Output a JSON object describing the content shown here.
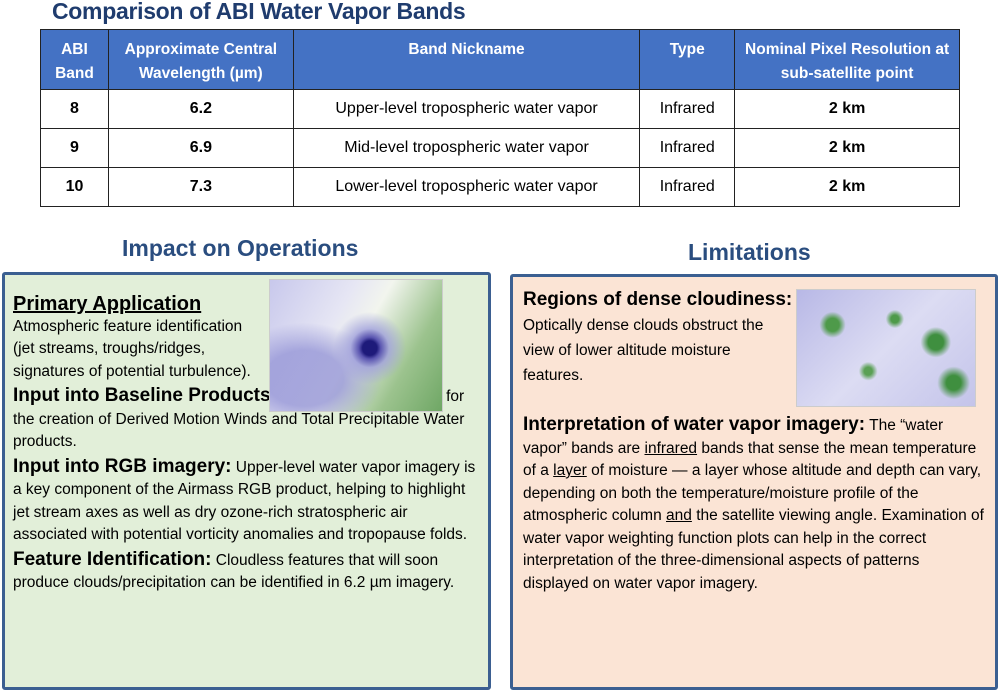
{
  "title": "Comparison of ABI Water Vapor Bands",
  "table": {
    "headers": [
      "ABI Band",
      "Approximate Central Wavelength (µm)",
      "Band Nickname",
      "Type",
      "Nominal  Pixel Resolution at sub-satellite point"
    ],
    "rows": [
      [
        "8",
        "6.2",
        "Upper-level tropospheric water vapor",
        "Infrared",
        "2 km"
      ],
      [
        "9",
        "6.9",
        "Mid-level tropospheric water vapor",
        "Infrared",
        "2 km"
      ],
      [
        "10",
        "7.3",
        "Lower-level tropospheric water vapor",
        "Infrared",
        "2 km"
      ]
    ]
  },
  "impact": {
    "heading": "Impact on Operations",
    "primary_title": "Primary Application",
    "primary_text": "Atmospheric feature identification (jet streams, troughs/ridges, signatures of potential turbulence).",
    "baseline_title": "Input into Baseline Products:",
    "baseline_text": "  6.2 µm imagery is input for the creation of Derived Motion Winds and Total Precipitable Water products.",
    "rgb_title": "Input into RGB imagery:",
    "rgb_text": " Upper-level water vapor imagery is a key component of the Airmass RGB product, helping to highlight jet stream axes as well as dry ozone-rich stratospheric air associated with potential vorticity anomalies and tropopause folds.",
    "feature_title": "Feature Identification:",
    "feature_text": "  Cloudless features that will soon produce clouds/precipitation can be identified in 6.2 µm imagery."
  },
  "limitations": {
    "heading": "Limitations",
    "dense_title": "Regions of dense cloudiness:",
    "dense_text": " Optically dense clouds obstruct the view of lower altitude moisture features.",
    "interp_title": "Interpretation of water vapor imagery:",
    "interp_1": " The “water vapor” bands are ",
    "interp_infrared": "infrared",
    "interp_2": " bands that sense the mean temperature of a ",
    "interp_layer": "layer",
    "interp_3": " of moisture — a layer whose altitude and depth can vary, depending on both the temperature/moisture profile of the atmospheric column ",
    "interp_and": "and",
    "interp_4": " the satellite viewing angle. Examination of water vapor weighting function plots can help in the correct interpretation of the three-dimensional aspects of patterns displayed on water vapor imagery."
  }
}
